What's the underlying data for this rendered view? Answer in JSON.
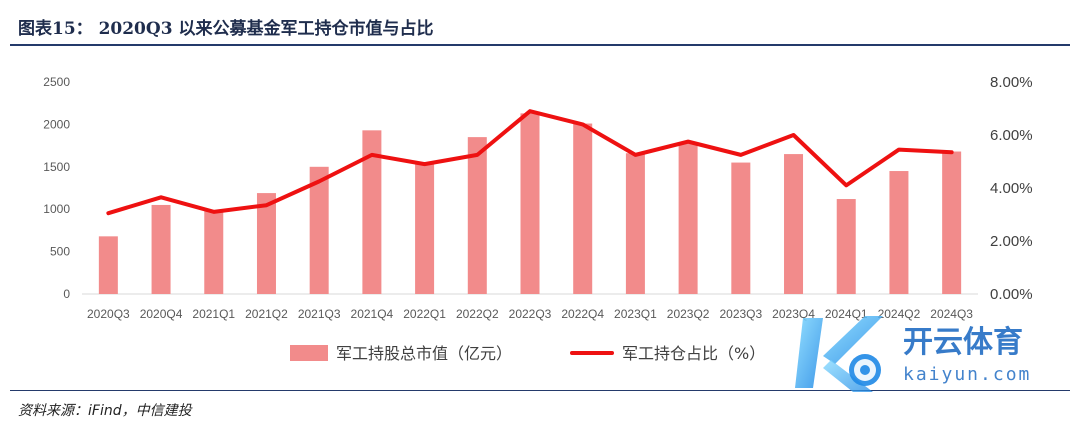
{
  "figure": {
    "title": "图表15： 2020Q3 以来公募基金军工持仓市值与占比",
    "source": "资料来源：iFind，中信建投",
    "watermark_text": "开云体育",
    "watermark_subtext": "kaiyun.com"
  },
  "chart_data": {
    "type": "bar",
    "categories": [
      "2020Q3",
      "2020Q4",
      "2021Q1",
      "2021Q2",
      "2021Q3",
      "2021Q4",
      "2022Q1",
      "2022Q2",
      "2022Q3",
      "2022Q4",
      "2023Q1",
      "2023Q2",
      "2023Q3",
      "2023Q4",
      "2024Q1",
      "2024Q2",
      "2024Q3"
    ],
    "series": [
      {
        "name": "军工持股总市值（亿元）",
        "type": "bar",
        "axis": "left",
        "color": "#f28b8b",
        "values": [
          680,
          1050,
          980,
          1190,
          1500,
          1930,
          1540,
          1850,
          2130,
          2010,
          1660,
          1780,
          1550,
          1650,
          1120,
          1450,
          1680
        ]
      },
      {
        "name": "军工持仓占比（%）",
        "type": "line",
        "axis": "right",
        "color": "#ee1111",
        "values": [
          3.05,
          3.65,
          3.1,
          3.35,
          4.25,
          5.25,
          4.9,
          5.25,
          6.9,
          6.4,
          5.25,
          5.75,
          5.25,
          6.0,
          4.1,
          5.45,
          5.35
        ]
      }
    ],
    "y_left": {
      "ylim": [
        0,
        2500
      ],
      "ticks": [
        "0",
        "500",
        "1000",
        "1500",
        "2000",
        "2500"
      ]
    },
    "y_right": {
      "ylim": [
        0,
        8
      ],
      "ticks": [
        "0.00%",
        "2.00%",
        "4.00%",
        "6.00%",
        "8.00%"
      ]
    },
    "legend_position": "bottom",
    "grid": false
  }
}
